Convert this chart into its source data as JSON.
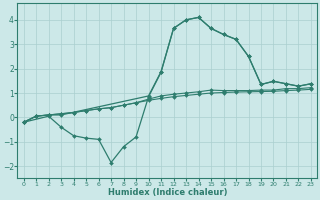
{
  "xlabel": "Humidex (Indice chaleur)",
  "background_color": "#cce8e8",
  "grid_color": "#aacfcf",
  "line_color": "#2e7d6e",
  "xlim": [
    -0.5,
    23.5
  ],
  "ylim": [
    -2.5,
    4.7
  ],
  "xticks": [
    0,
    1,
    2,
    3,
    4,
    5,
    6,
    7,
    8,
    9,
    10,
    11,
    12,
    13,
    14,
    15,
    16,
    17,
    18,
    19,
    20,
    21,
    22,
    23
  ],
  "yticks": [
    -2,
    -1,
    0,
    1,
    2,
    3,
    4
  ],
  "line1_x": [
    0,
    1,
    2,
    3,
    4,
    5,
    6,
    7,
    8,
    9,
    10,
    11,
    12,
    13,
    14,
    15,
    16,
    17,
    18,
    19,
    20,
    21,
    22,
    23
  ],
  "line1_y": [
    -0.2,
    0.05,
    0.1,
    0.15,
    0.2,
    0.28,
    0.35,
    0.4,
    0.5,
    0.6,
    0.7,
    0.78,
    0.85,
    0.9,
    0.95,
    1.0,
    1.02,
    1.04,
    1.05,
    1.06,
    1.07,
    1.1,
    1.12,
    1.15
  ],
  "line2_x": [
    0,
    1,
    2,
    3,
    4,
    5,
    6,
    7,
    8,
    9,
    10,
    11,
    12,
    13,
    14,
    15,
    16,
    17,
    18,
    19,
    20,
    21,
    22,
    23
  ],
  "line2_y": [
    -0.2,
    0.05,
    0.1,
    0.15,
    0.2,
    0.28,
    0.35,
    0.4,
    0.5,
    0.6,
    0.75,
    0.88,
    0.95,
    1.0,
    1.05,
    1.12,
    1.1,
    1.1,
    1.1,
    1.12,
    1.12,
    1.18,
    1.18,
    1.22
  ],
  "line3_x": [
    0,
    2,
    3,
    4,
    5,
    6,
    7,
    8,
    9,
    10,
    11,
    12,
    13,
    14,
    15,
    16,
    17,
    18,
    19,
    20,
    21,
    22,
    23
  ],
  "line3_y": [
    -0.2,
    0.05,
    -0.4,
    -0.75,
    -0.85,
    -0.9,
    -1.85,
    -1.2,
    -0.8,
    0.85,
    1.85,
    3.65,
    4.0,
    4.1,
    3.65,
    3.4,
    3.2,
    2.5,
    1.35,
    1.48,
    1.38,
    1.28,
    1.38
  ],
  "line4_x": [
    0,
    1,
    2,
    3,
    10,
    11,
    12,
    13,
    14,
    15,
    16,
    17,
    18,
    19,
    20,
    21,
    22,
    23
  ],
  "line4_y": [
    -0.2,
    0.05,
    0.1,
    0.1,
    0.88,
    1.88,
    3.65,
    4.0,
    4.1,
    3.65,
    3.4,
    3.2,
    2.5,
    1.35,
    1.48,
    1.38,
    1.28,
    1.38
  ]
}
